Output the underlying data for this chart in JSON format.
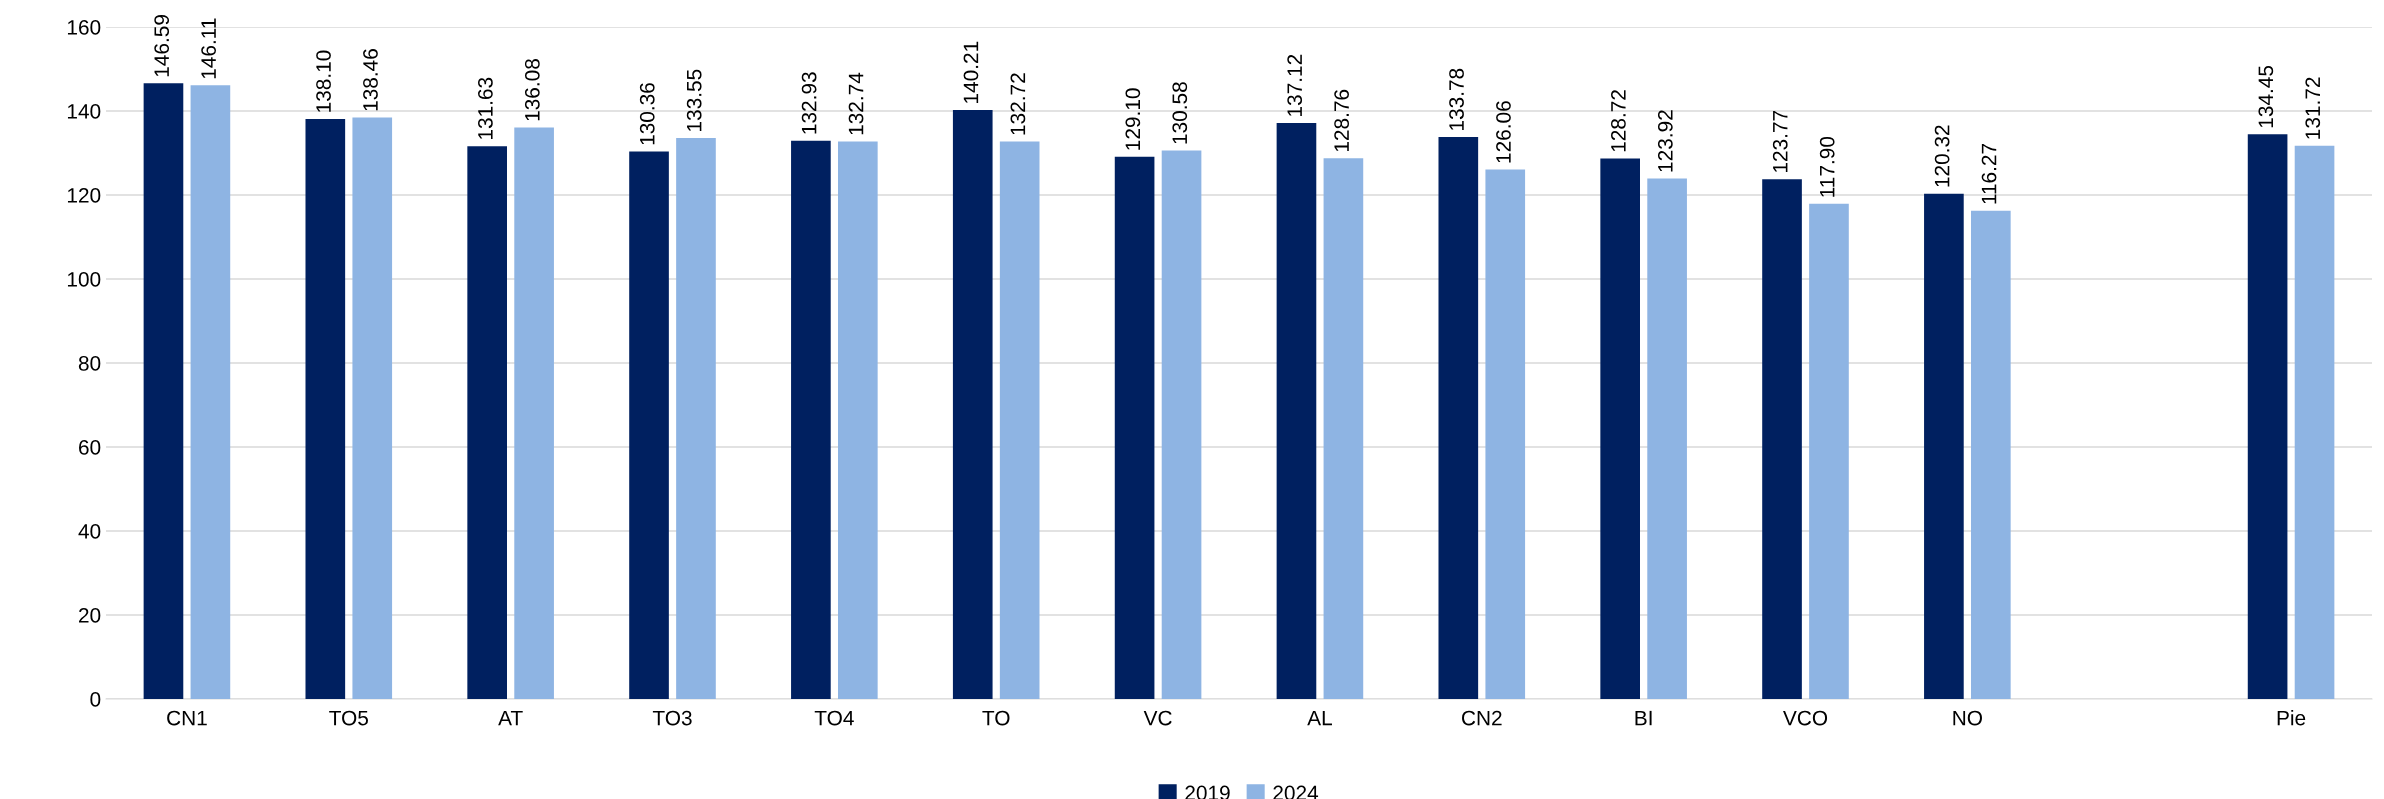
{
  "chart_data": {
    "type": "bar",
    "categories": [
      "CN1",
      "TO5",
      "AT",
      "TO3",
      "TO4",
      "TO",
      "VC",
      "AL",
      "CN2",
      "BI",
      "VCO",
      "NO",
      null,
      "Pie"
    ],
    "series": [
      {
        "name": "2019",
        "color": "#002060",
        "values": [
          146.59,
          138.1,
          131.63,
          130.36,
          132.93,
          140.21,
          129.1,
          137.12,
          133.78,
          128.72,
          123.77,
          120.32,
          null,
          134.45
        ],
        "value_labels": [
          "146.59",
          "138.10",
          "131.63",
          "130.36",
          "132.93",
          "140.21",
          "129.10",
          "137.12",
          "133.78",
          "128.72",
          "123.77",
          "120.32",
          null,
          "134.45"
        ]
      },
      {
        "name": "2024",
        "color": "#8eb4e3",
        "values": [
          146.11,
          138.46,
          136.08,
          133.55,
          132.74,
          132.72,
          130.58,
          128.76,
          126.06,
          123.92,
          117.9,
          116.27,
          null,
          131.72
        ],
        "value_labels": [
          "146.11",
          "138.46",
          "136.08",
          "133.55",
          "132.74",
          "132.72",
          "130.58",
          "128.76",
          "126.06",
          "123.92",
          "117.90",
          "116.27",
          null,
          "131.72"
        ]
      }
    ],
    "ylim": [
      0,
      160
    ],
    "yticks": [
      0,
      20,
      40,
      60,
      80,
      100,
      120,
      140,
      160
    ],
    "grid": "y",
    "legend": "bottom"
  }
}
